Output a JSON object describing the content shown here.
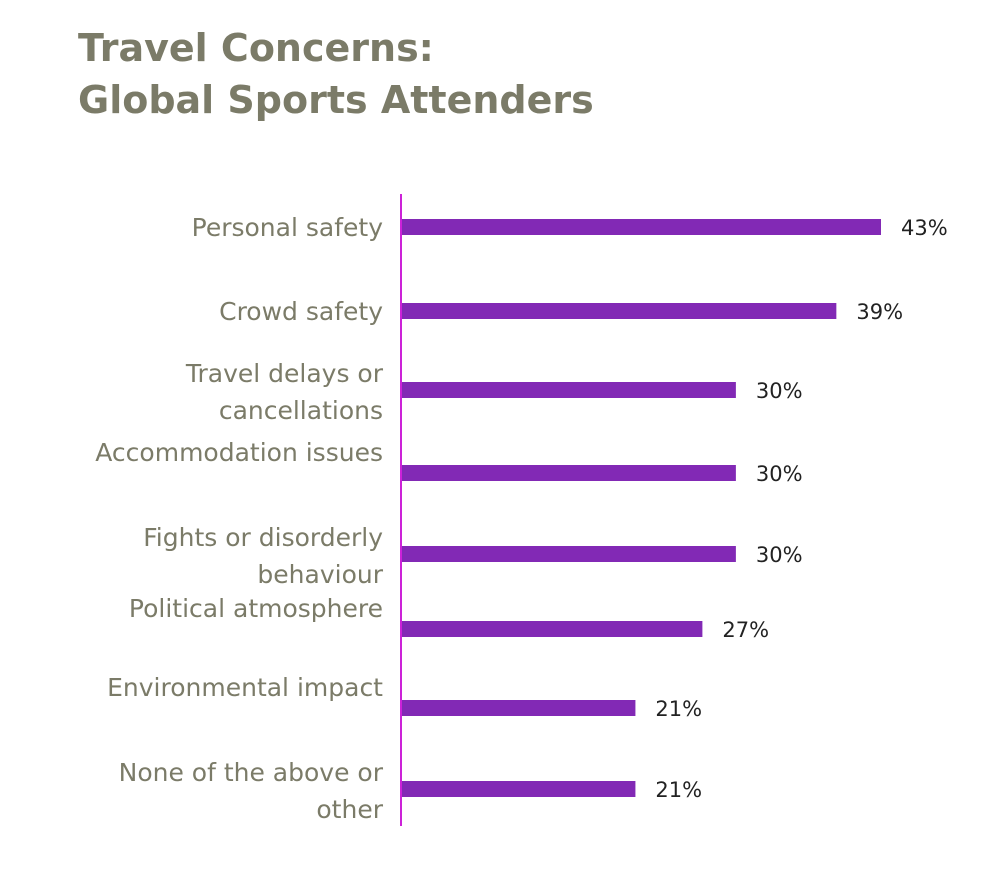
{
  "chart_data": {
    "type": "bar",
    "orientation": "horizontal",
    "title_lines": [
      "Travel Concerns:",
      "Global Sports Attenders"
    ],
    "categories": [
      [
        "Personal safety"
      ],
      [
        "Crowd safety"
      ],
      [
        "Travel delays or",
        "cancellations"
      ],
      [
        "Accommodation issues"
      ],
      [
        "Fights or disorderly",
        "behaviour"
      ],
      [
        "Political atmosphere"
      ],
      [
        "Environmental impact"
      ],
      [
        "None of the above or",
        "other"
      ]
    ],
    "values": [
      43,
      39,
      30,
      30,
      30,
      27,
      21,
      21
    ],
    "value_labels": [
      "43%",
      "39%",
      "30%",
      "30%",
      "30%",
      "27%",
      "21%",
      "21%"
    ],
    "unit": "%",
    "grid": false,
    "legend": "none",
    "colors": {
      "bar": "#8229b5",
      "axis": "#cc22d8",
      "text": "#7b7b68",
      "value_text": "#222222"
    }
  }
}
